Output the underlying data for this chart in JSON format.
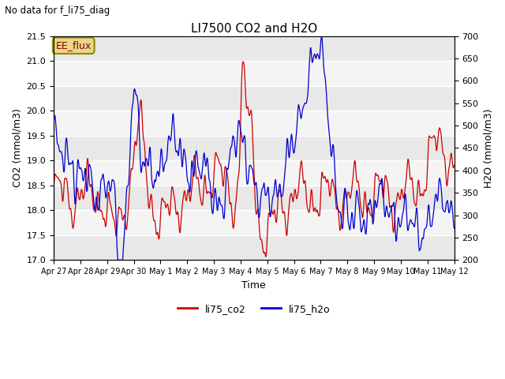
{
  "title": "LI7500 CO2 and H2O",
  "subtitle": "No data for f_li75_diag",
  "xlabel": "Time",
  "ylabel_left": "CO2 (mmol/m3)",
  "ylabel_right": "H2O (mmol/m3)",
  "ylim_left": [
    17.0,
    21.5
  ],
  "ylim_right": [
    200,
    700
  ],
  "yticks_left": [
    17.0,
    17.5,
    18.0,
    18.5,
    19.0,
    19.5,
    20.0,
    20.5,
    21.0,
    21.5
  ],
  "yticks_right": [
    200,
    250,
    300,
    350,
    400,
    450,
    500,
    550,
    600,
    650,
    700
  ],
  "xtick_labels": [
    "Apr 27",
    "Apr 28",
    "Apr 29",
    "Apr 30",
    "May 1",
    "May 2",
    "May 3",
    "May 4",
    "May 5",
    "May 6",
    "May 7",
    "May 8",
    "May 9",
    "May 10",
    "May 11",
    "May 12"
  ],
  "color_co2": "#cc0000",
  "color_h2o": "#0000cc",
  "legend_label_co2": "li75_co2",
  "legend_label_h2o": "li75_h2o",
  "annotation_text": "EE_flux",
  "band_color_dark": "#e8e8e8",
  "band_color_light": "#f4f4f4",
  "plot_bg_color": "#ffffff",
  "n_points": 1500,
  "seed": 7
}
